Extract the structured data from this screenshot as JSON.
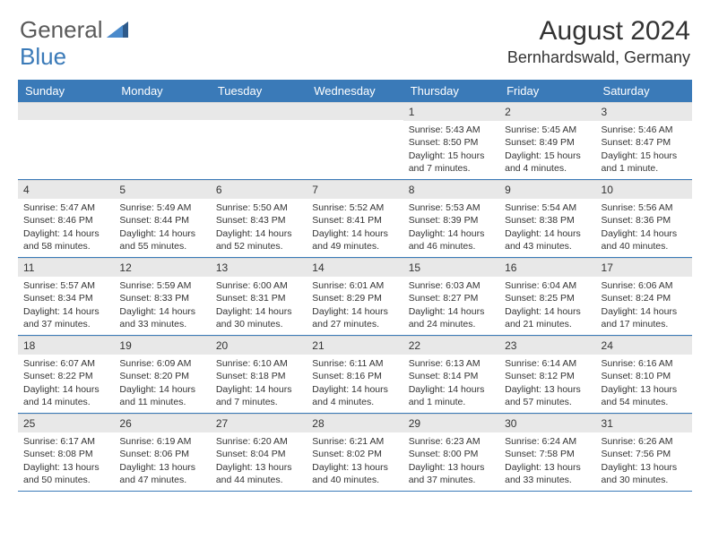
{
  "logo": {
    "general": "General",
    "blue": "Blue"
  },
  "title": "August 2024",
  "location": "Bernhardswald, Germany",
  "day_names": [
    "Sunday",
    "Monday",
    "Tuesday",
    "Wednesday",
    "Thursday",
    "Friday",
    "Saturday"
  ],
  "colors": {
    "header_bg": "#3a7ab8",
    "header_fg": "#ffffff",
    "daynum_bg": "#e8e8e8",
    "border": "#3a7ab8",
    "text": "#333333",
    "logo_gray": "#5a5a5a",
    "logo_blue": "#3a7ab8"
  },
  "weeks": [
    [
      {
        "empty": true
      },
      {
        "empty": true
      },
      {
        "empty": true
      },
      {
        "empty": true
      },
      {
        "day": "1",
        "sunrise": "Sunrise: 5:43 AM",
        "sunset": "Sunset: 8:50 PM",
        "daylight": "Daylight: 15 hours and 7 minutes."
      },
      {
        "day": "2",
        "sunrise": "Sunrise: 5:45 AM",
        "sunset": "Sunset: 8:49 PM",
        "daylight": "Daylight: 15 hours and 4 minutes."
      },
      {
        "day": "3",
        "sunrise": "Sunrise: 5:46 AM",
        "sunset": "Sunset: 8:47 PM",
        "daylight": "Daylight: 15 hours and 1 minute."
      }
    ],
    [
      {
        "day": "4",
        "sunrise": "Sunrise: 5:47 AM",
        "sunset": "Sunset: 8:46 PM",
        "daylight": "Daylight: 14 hours and 58 minutes."
      },
      {
        "day": "5",
        "sunrise": "Sunrise: 5:49 AM",
        "sunset": "Sunset: 8:44 PM",
        "daylight": "Daylight: 14 hours and 55 minutes."
      },
      {
        "day": "6",
        "sunrise": "Sunrise: 5:50 AM",
        "sunset": "Sunset: 8:43 PM",
        "daylight": "Daylight: 14 hours and 52 minutes."
      },
      {
        "day": "7",
        "sunrise": "Sunrise: 5:52 AM",
        "sunset": "Sunset: 8:41 PM",
        "daylight": "Daylight: 14 hours and 49 minutes."
      },
      {
        "day": "8",
        "sunrise": "Sunrise: 5:53 AM",
        "sunset": "Sunset: 8:39 PM",
        "daylight": "Daylight: 14 hours and 46 minutes."
      },
      {
        "day": "9",
        "sunrise": "Sunrise: 5:54 AM",
        "sunset": "Sunset: 8:38 PM",
        "daylight": "Daylight: 14 hours and 43 minutes."
      },
      {
        "day": "10",
        "sunrise": "Sunrise: 5:56 AM",
        "sunset": "Sunset: 8:36 PM",
        "daylight": "Daylight: 14 hours and 40 minutes."
      }
    ],
    [
      {
        "day": "11",
        "sunrise": "Sunrise: 5:57 AM",
        "sunset": "Sunset: 8:34 PM",
        "daylight": "Daylight: 14 hours and 37 minutes."
      },
      {
        "day": "12",
        "sunrise": "Sunrise: 5:59 AM",
        "sunset": "Sunset: 8:33 PM",
        "daylight": "Daylight: 14 hours and 33 minutes."
      },
      {
        "day": "13",
        "sunrise": "Sunrise: 6:00 AM",
        "sunset": "Sunset: 8:31 PM",
        "daylight": "Daylight: 14 hours and 30 minutes."
      },
      {
        "day": "14",
        "sunrise": "Sunrise: 6:01 AM",
        "sunset": "Sunset: 8:29 PM",
        "daylight": "Daylight: 14 hours and 27 minutes."
      },
      {
        "day": "15",
        "sunrise": "Sunrise: 6:03 AM",
        "sunset": "Sunset: 8:27 PM",
        "daylight": "Daylight: 14 hours and 24 minutes."
      },
      {
        "day": "16",
        "sunrise": "Sunrise: 6:04 AM",
        "sunset": "Sunset: 8:25 PM",
        "daylight": "Daylight: 14 hours and 21 minutes."
      },
      {
        "day": "17",
        "sunrise": "Sunrise: 6:06 AM",
        "sunset": "Sunset: 8:24 PM",
        "daylight": "Daylight: 14 hours and 17 minutes."
      }
    ],
    [
      {
        "day": "18",
        "sunrise": "Sunrise: 6:07 AM",
        "sunset": "Sunset: 8:22 PM",
        "daylight": "Daylight: 14 hours and 14 minutes."
      },
      {
        "day": "19",
        "sunrise": "Sunrise: 6:09 AM",
        "sunset": "Sunset: 8:20 PM",
        "daylight": "Daylight: 14 hours and 11 minutes."
      },
      {
        "day": "20",
        "sunrise": "Sunrise: 6:10 AM",
        "sunset": "Sunset: 8:18 PM",
        "daylight": "Daylight: 14 hours and 7 minutes."
      },
      {
        "day": "21",
        "sunrise": "Sunrise: 6:11 AM",
        "sunset": "Sunset: 8:16 PM",
        "daylight": "Daylight: 14 hours and 4 minutes."
      },
      {
        "day": "22",
        "sunrise": "Sunrise: 6:13 AM",
        "sunset": "Sunset: 8:14 PM",
        "daylight": "Daylight: 14 hours and 1 minute."
      },
      {
        "day": "23",
        "sunrise": "Sunrise: 6:14 AM",
        "sunset": "Sunset: 8:12 PM",
        "daylight": "Daylight: 13 hours and 57 minutes."
      },
      {
        "day": "24",
        "sunrise": "Sunrise: 6:16 AM",
        "sunset": "Sunset: 8:10 PM",
        "daylight": "Daylight: 13 hours and 54 minutes."
      }
    ],
    [
      {
        "day": "25",
        "sunrise": "Sunrise: 6:17 AM",
        "sunset": "Sunset: 8:08 PM",
        "daylight": "Daylight: 13 hours and 50 minutes."
      },
      {
        "day": "26",
        "sunrise": "Sunrise: 6:19 AM",
        "sunset": "Sunset: 8:06 PM",
        "daylight": "Daylight: 13 hours and 47 minutes."
      },
      {
        "day": "27",
        "sunrise": "Sunrise: 6:20 AM",
        "sunset": "Sunset: 8:04 PM",
        "daylight": "Daylight: 13 hours and 44 minutes."
      },
      {
        "day": "28",
        "sunrise": "Sunrise: 6:21 AM",
        "sunset": "Sunset: 8:02 PM",
        "daylight": "Daylight: 13 hours and 40 minutes."
      },
      {
        "day": "29",
        "sunrise": "Sunrise: 6:23 AM",
        "sunset": "Sunset: 8:00 PM",
        "daylight": "Daylight: 13 hours and 37 minutes."
      },
      {
        "day": "30",
        "sunrise": "Sunrise: 6:24 AM",
        "sunset": "Sunset: 7:58 PM",
        "daylight": "Daylight: 13 hours and 33 minutes."
      },
      {
        "day": "31",
        "sunrise": "Sunrise: 6:26 AM",
        "sunset": "Sunset: 7:56 PM",
        "daylight": "Daylight: 13 hours and 30 minutes."
      }
    ]
  ]
}
